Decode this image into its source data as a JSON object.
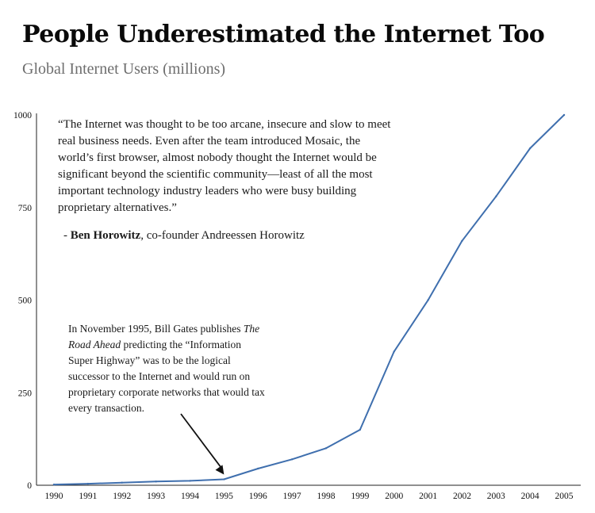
{
  "header": {
    "title": "People Underestimated the Internet Too",
    "subtitle": "Global Internet Users (millions)"
  },
  "quote": {
    "text": "“The Internet was thought to be too arcane, insecure and slow to meet real business needs. Even after the team introduced Mosaic, the world’s first browser, almost nobody thought the Internet would be significant beyond the scientific community—least of all the most important technology industry leaders who were busy building proprietary alternatives.”",
    "attribution_prefix": "- ",
    "attribution_name": "Ben Horowitz",
    "attribution_suffix": ", co-founder Andreessen Horowitz"
  },
  "annotation": {
    "before": "In November 1995, Bill Gates publishes ",
    "italic": "The Road Ahead",
    "after": " predicting the “Information Super Highway” was to be the logical successor to the Internet and would run on proprietary corporate networks that would tax every transaction."
  },
  "chart_data": {
    "type": "line",
    "title": "People Underestimated the Internet Too",
    "subtitle": "Global Internet Users (millions)",
    "xlabel": "",
    "ylabel": "",
    "x": [
      "1990",
      "1991",
      "1992",
      "1993",
      "1994",
      "1995",
      "1996",
      "1997",
      "1998",
      "1999",
      "2000",
      "2001",
      "2002",
      "2003",
      "2004",
      "2005"
    ],
    "series": [
      {
        "values": [
          2,
          4,
          7,
          10,
          12,
          16,
          45,
          70,
          100,
          150,
          361,
          500,
          660,
          780,
          910,
          1000
        ]
      }
    ],
    "y_ticks": [
      0,
      250,
      500,
      750,
      1000
    ],
    "ylim": [
      0,
      1000
    ],
    "grid": false,
    "line_color": "#3f6fae",
    "annotation_year": "1995"
  }
}
